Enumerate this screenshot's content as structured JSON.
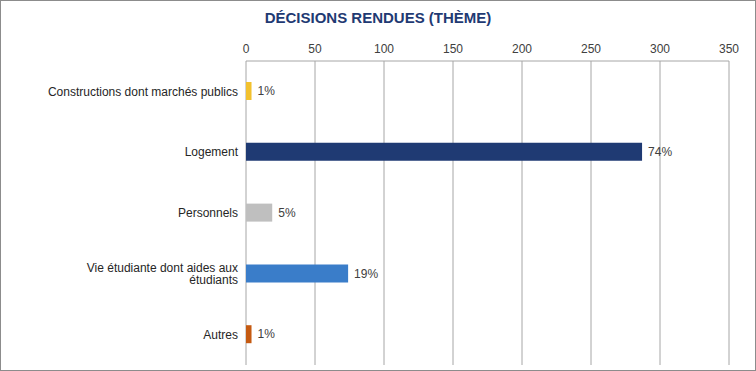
{
  "chart_data": {
    "type": "bar",
    "title": "DÉCISIONS RENDUES (THÈME)",
    "orientation": "horizontal",
    "categories": [
      "Constructions dont marchés publics",
      "Logement",
      "Personnels",
      "Vie étudiante dont aides aux étudiants",
      "Autres"
    ],
    "values": [
      4,
      287,
      19,
      74,
      4
    ],
    "value_labels": [
      "1%",
      "74%",
      "5%",
      "19%",
      "1%"
    ],
    "data_labels": true,
    "colors": [
      "#f2c12e",
      "#1f3a73",
      "#bfbfbf",
      "#3a7dc9",
      "#c55a11"
    ],
    "xlim": [
      0,
      350
    ],
    "xticks": [
      0,
      50,
      100,
      150,
      200,
      250,
      300,
      350
    ],
    "grid": true
  }
}
